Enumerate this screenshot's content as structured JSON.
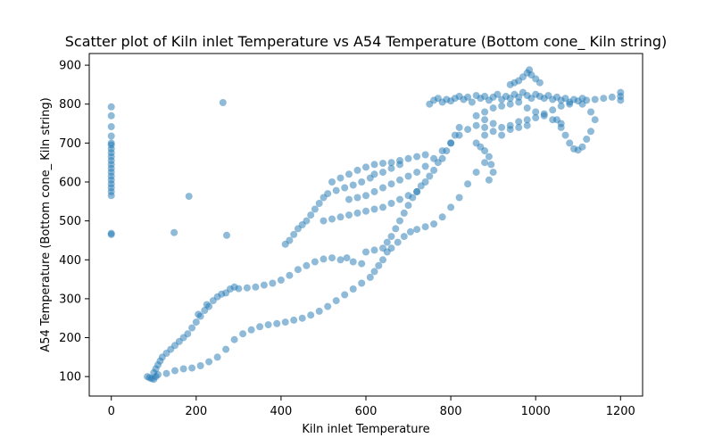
{
  "chart_data": {
    "type": "scatter",
    "title": "Scatter plot of Kiln inlet Temperature vs A54 Temperature (Bottom cone_ Kiln string)",
    "xlabel": "Kiln inlet Temperature",
    "ylabel": "A54 Temperature (Bottom cone_ Kiln string)",
    "xlim": [
      -52,
      1252
    ],
    "ylim": [
      50,
      930
    ],
    "xticks": [
      0,
      200,
      400,
      600,
      800,
      1000,
      1200
    ],
    "yticks": [
      100,
      200,
      300,
      400,
      500,
      600,
      700,
      800,
      900
    ],
    "xtick_labels": [
      "0",
      "200",
      "400",
      "600",
      "800",
      "1000",
      "1200"
    ],
    "ytick_labels": [
      "100",
      "200",
      "300",
      "400",
      "500",
      "600",
      "700",
      "800",
      "900"
    ],
    "grid": false,
    "legend": false,
    "marker_color": "#1f77b4",
    "marker_alpha": 0.5,
    "series": [
      {
        "points": [
          [
            0,
            465
          ],
          [
            0,
            468
          ],
          [
            0,
            565
          ],
          [
            0,
            575
          ],
          [
            0,
            585
          ],
          [
            0,
            595
          ],
          [
            0,
            605
          ],
          [
            0,
            615
          ],
          [
            0,
            625
          ],
          [
            0,
            635
          ],
          [
            0,
            645
          ],
          [
            0,
            655
          ],
          [
            0,
            665
          ],
          [
            0,
            675
          ],
          [
            0,
            685
          ],
          [
            0,
            695
          ],
          [
            0,
            700
          ],
          [
            0,
            718
          ],
          [
            0,
            742
          ],
          [
            0,
            770
          ],
          [
            0,
            793
          ],
          [
            148,
            470
          ],
          [
            183,
            563
          ],
          [
            263,
            804
          ],
          [
            272,
            463
          ],
          [
            85,
            100
          ],
          [
            90,
            97
          ],
          [
            95,
            95
          ],
          [
            100,
            93
          ],
          [
            105,
            100
          ],
          [
            100,
            110
          ],
          [
            105,
            120
          ],
          [
            110,
            130
          ],
          [
            115,
            140
          ],
          [
            120,
            150
          ],
          [
            130,
            160
          ],
          [
            140,
            170
          ],
          [
            150,
            180
          ],
          [
            160,
            190
          ],
          [
            170,
            200
          ],
          [
            180,
            210
          ],
          [
            190,
            225
          ],
          [
            200,
            240
          ],
          [
            205,
            260
          ],
          [
            210,
            255
          ],
          [
            220,
            270
          ],
          [
            225,
            285
          ],
          [
            230,
            280
          ],
          [
            240,
            295
          ],
          [
            250,
            305
          ],
          [
            260,
            312
          ],
          [
            270,
            315
          ],
          [
            280,
            325
          ],
          [
            290,
            330
          ],
          [
            300,
            326
          ],
          [
            320,
            328
          ],
          [
            340,
            330
          ],
          [
            360,
            335
          ],
          [
            380,
            340
          ],
          [
            400,
            348
          ],
          [
            420,
            360
          ],
          [
            440,
            375
          ],
          [
            460,
            385
          ],
          [
            480,
            395
          ],
          [
            500,
            402
          ],
          [
            520,
            405
          ],
          [
            540,
            400
          ],
          [
            555,
            405
          ],
          [
            570,
            395
          ],
          [
            590,
            390
          ],
          [
            110,
            105
          ],
          [
            130,
            108
          ],
          [
            150,
            115
          ],
          [
            170,
            120
          ],
          [
            190,
            122
          ],
          [
            210,
            128
          ],
          [
            230,
            138
          ],
          [
            250,
            150
          ],
          [
            270,
            170
          ],
          [
            290,
            195
          ],
          [
            310,
            210
          ],
          [
            330,
            220
          ],
          [
            350,
            228
          ],
          [
            370,
            233
          ],
          [
            390,
            236
          ],
          [
            410,
            240
          ],
          [
            430,
            245
          ],
          [
            450,
            250
          ],
          [
            470,
            258
          ],
          [
            490,
            268
          ],
          [
            510,
            280
          ],
          [
            530,
            295
          ],
          [
            550,
            310
          ],
          [
            570,
            325
          ],
          [
            590,
            340
          ],
          [
            610,
            355
          ],
          [
            620,
            370
          ],
          [
            630,
            385
          ],
          [
            640,
            400
          ],
          [
            650,
            420
          ],
          [
            660,
            430
          ],
          [
            675,
            445
          ],
          [
            690,
            460
          ],
          [
            705,
            472
          ],
          [
            720,
            478
          ],
          [
            740,
            485
          ],
          [
            760,
            492
          ],
          [
            780,
            510
          ],
          [
            800,
            535
          ],
          [
            820,
            560
          ],
          [
            840,
            595
          ],
          [
            860,
            625
          ],
          [
            880,
            650
          ],
          [
            410,
            440
          ],
          [
            420,
            450
          ],
          [
            430,
            465
          ],
          [
            440,
            480
          ],
          [
            450,
            490
          ],
          [
            460,
            500
          ],
          [
            470,
            515
          ],
          [
            480,
            530
          ],
          [
            490,
            545
          ],
          [
            500,
            560
          ],
          [
            510,
            570
          ],
          [
            530,
            578
          ],
          [
            550,
            585
          ],
          [
            570,
            592
          ],
          [
            590,
            600
          ],
          [
            610,
            610
          ],
          [
            620,
            620
          ],
          [
            640,
            625
          ],
          [
            660,
            635
          ],
          [
            680,
            645
          ],
          [
            600,
            420
          ],
          [
            620,
            425
          ],
          [
            640,
            430
          ],
          [
            650,
            445
          ],
          [
            660,
            460
          ],
          [
            670,
            480
          ],
          [
            680,
            500
          ],
          [
            690,
            520
          ],
          [
            700,
            540
          ],
          [
            710,
            560
          ],
          [
            720,
            575
          ],
          [
            730,
            590
          ],
          [
            740,
            600
          ],
          [
            750,
            615
          ],
          [
            760,
            630
          ],
          [
            770,
            650
          ],
          [
            780,
            660
          ],
          [
            790,
            680
          ],
          [
            800,
            700
          ],
          [
            810,
            720
          ],
          [
            820,
            740
          ],
          [
            500,
            500
          ],
          [
            520,
            505
          ],
          [
            540,
            510
          ],
          [
            560,
            515
          ],
          [
            580,
            520
          ],
          [
            600,
            525
          ],
          [
            620,
            530
          ],
          [
            640,
            535
          ],
          [
            660,
            545
          ],
          [
            680,
            555
          ],
          [
            700,
            565
          ],
          [
            720,
            575
          ],
          [
            520,
            600
          ],
          [
            540,
            610
          ],
          [
            560,
            620
          ],
          [
            580,
            630
          ],
          [
            600,
            638
          ],
          [
            620,
            645
          ],
          [
            640,
            648
          ],
          [
            660,
            650
          ],
          [
            680,
            655
          ],
          [
            700,
            660
          ],
          [
            720,
            665
          ],
          [
            740,
            670
          ],
          [
            560,
            555
          ],
          [
            580,
            560
          ],
          [
            600,
            565
          ],
          [
            620,
            575
          ],
          [
            640,
            585
          ],
          [
            660,
            595
          ],
          [
            680,
            605
          ],
          [
            700,
            615
          ],
          [
            720,
            625
          ],
          [
            740,
            640
          ],
          [
            760,
            660
          ],
          [
            780,
            680
          ],
          [
            800,
            700
          ],
          [
            820,
            720
          ],
          [
            840,
            735
          ],
          [
            860,
            745
          ],
          [
            880,
            760
          ],
          [
            750,
            800
          ],
          [
            760,
            810
          ],
          [
            770,
            815
          ],
          [
            780,
            805
          ],
          [
            790,
            812
          ],
          [
            800,
            808
          ],
          [
            810,
            815
          ],
          [
            820,
            820
          ],
          [
            830,
            812
          ],
          [
            840,
            818
          ],
          [
            850,
            805
          ],
          [
            860,
            822
          ],
          [
            870,
            815
          ],
          [
            880,
            820
          ],
          [
            890,
            810
          ],
          [
            900,
            818
          ],
          [
            910,
            825
          ],
          [
            920,
            812
          ],
          [
            930,
            820
          ],
          [
            940,
            815
          ],
          [
            950,
            825
          ],
          [
            960,
            818
          ],
          [
            970,
            830
          ],
          [
            980,
            822
          ],
          [
            990,
            815
          ],
          [
            1000,
            825
          ],
          [
            1010,
            820
          ],
          [
            1020,
            815
          ],
          [
            1030,
            822
          ],
          [
            1040,
            812
          ],
          [
            1050,
            818
          ],
          [
            1060,
            810
          ],
          [
            1070,
            815
          ],
          [
            1080,
            805
          ],
          [
            1090,
            812
          ],
          [
            1100,
            808
          ],
          [
            1110,
            815
          ],
          [
            1120,
            810
          ],
          [
            1140,
            812
          ],
          [
            1160,
            815
          ],
          [
            1180,
            818
          ],
          [
            1200,
            810
          ],
          [
            1200,
            820
          ],
          [
            1200,
            830
          ],
          [
            860,
            770
          ],
          [
            880,
            780
          ],
          [
            900,
            790
          ],
          [
            920,
            795
          ],
          [
            940,
            800
          ],
          [
            960,
            805
          ],
          [
            980,
            790
          ],
          [
            1000,
            780
          ],
          [
            1020,
            775
          ],
          [
            1040,
            785
          ],
          [
            1060,
            795
          ],
          [
            1080,
            800
          ],
          [
            960,
            860
          ],
          [
            970,
            870
          ],
          [
            980,
            880
          ],
          [
            985,
            888
          ],
          [
            990,
            875
          ],
          [
            1000,
            865
          ],
          [
            1010,
            855
          ],
          [
            940,
            850
          ],
          [
            950,
            855
          ],
          [
            880,
            740
          ],
          [
            900,
            750
          ],
          [
            920,
            740
          ],
          [
            940,
            745
          ],
          [
            960,
            755
          ],
          [
            980,
            760
          ],
          [
            1000,
            765
          ],
          [
            1020,
            770
          ],
          [
            1040,
            760
          ],
          [
            1060,
            750
          ],
          [
            1050,
            760
          ],
          [
            1060,
            740
          ],
          [
            1070,
            720
          ],
          [
            1080,
            700
          ],
          [
            1090,
            685
          ],
          [
            1100,
            682
          ],
          [
            1110,
            690
          ],
          [
            1120,
            710
          ],
          [
            1130,
            730
          ],
          [
            1140,
            760
          ],
          [
            1130,
            780
          ],
          [
            1110,
            800
          ],
          [
            880,
            720
          ],
          [
            900,
            730
          ],
          [
            920,
            720
          ],
          [
            940,
            735
          ],
          [
            960,
            740
          ],
          [
            980,
            745
          ],
          [
            860,
            700
          ],
          [
            870,
            690
          ],
          [
            880,
            680
          ],
          [
            890,
            665
          ],
          [
            895,
            645
          ],
          [
            900,
            625
          ],
          [
            890,
            605
          ]
        ]
      }
    ]
  }
}
